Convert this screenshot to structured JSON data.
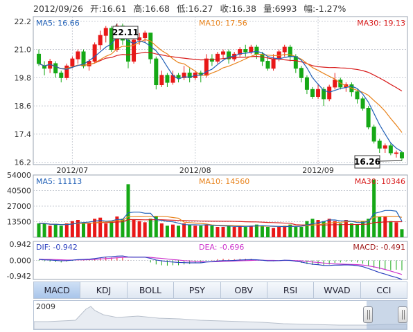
{
  "header": {
    "date": "2012/09/26",
    "open": "开:16.61",
    "high": "高:16.68",
    "low": "低:16.27",
    "close": "收:16.38",
    "volume": "量:6993",
    "change": "幅:-1.27%"
  },
  "colors": {
    "up": "#e81818",
    "down": "#16a816",
    "ma5": "#1f5fb6",
    "ma10": "#e8821a",
    "ma30": "#d81b1b",
    "grid": "#c8ccd4",
    "dif": "#2a3fbf",
    "dea": "#cc33cc"
  },
  "tabs": [
    "MACD",
    "KDJ",
    "BOLL",
    "PSY",
    "OBV",
    "RSI",
    "WVAD",
    "CCI"
  ],
  "active_tab": "MACD",
  "navigator_year": "2009",
  "chart_data": [
    {
      "type": "candlestick",
      "legend": {
        "ma5": "MA5: 16.66",
        "ma10": "MA10: 17.56",
        "ma30": "MA30: 19.13"
      },
      "ylim": [
        16.1,
        22.4
      ],
      "y_ticks": [
        "22.2",
        "21.0",
        "19.8",
        "18.6",
        "17.4",
        "16.2"
      ],
      "x_labels": [
        {
          "label": "2012/07",
          "index": 6
        },
        {
          "label": "2012/08",
          "index": 28
        },
        {
          "label": "2012/09",
          "index": 50
        }
      ],
      "max_label": "22.11",
      "min_label": "16.26",
      "candles": [
        [
          20.8,
          20.4,
          21.0,
          20.3
        ],
        [
          20.3,
          20.2,
          20.5,
          19.9
        ],
        [
          20.2,
          20.5,
          20.6,
          20.0
        ],
        [
          20.4,
          20.0,
          20.5,
          19.8
        ],
        [
          20.0,
          19.8,
          20.1,
          19.6
        ],
        [
          19.8,
          20.3,
          20.4,
          19.7
        ],
        [
          20.3,
          20.6,
          20.7,
          20.2
        ],
        [
          20.6,
          20.9,
          21.0,
          20.4
        ],
        [
          20.9,
          20.3,
          21.0,
          20.2
        ],
        [
          20.3,
          20.5,
          20.6,
          20.1
        ],
        [
          20.5,
          21.2,
          21.3,
          20.4
        ],
        [
          21.2,
          21.6,
          21.8,
          21.0
        ],
        [
          21.6,
          21.9,
          22.0,
          21.3
        ],
        [
          21.9,
          21.0,
          22.0,
          20.9
        ],
        [
          21.0,
          22.0,
          22.1,
          20.9
        ],
        [
          22.0,
          21.4,
          22.1,
          21.2
        ],
        [
          21.4,
          20.5,
          21.5,
          20.2
        ],
        [
          20.5,
          21.4,
          21.5,
          20.4
        ],
        [
          21.4,
          21.5,
          21.7,
          21.2
        ],
        [
          21.5,
          21.7,
          21.8,
          21.3
        ],
        [
          21.7,
          20.6,
          21.7,
          20.4
        ],
        [
          20.6,
          19.5,
          20.7,
          19.3
        ],
        [
          19.5,
          19.9,
          20.1,
          19.4
        ],
        [
          19.9,
          19.6,
          20.0,
          19.4
        ],
        [
          19.6,
          19.9,
          20.1,
          19.5
        ],
        [
          19.9,
          19.8,
          20.0,
          19.6
        ],
        [
          19.8,
          20.0,
          20.3,
          19.7
        ],
        [
          20.0,
          19.8,
          20.2,
          19.6
        ],
        [
          19.8,
          20.0,
          20.1,
          19.7
        ],
        [
          20.0,
          19.9,
          20.1,
          19.6
        ],
        [
          19.9,
          20.6,
          20.8,
          19.8
        ],
        [
          20.6,
          20.5,
          20.8,
          20.3
        ],
        [
          20.5,
          20.8,
          20.9,
          20.4
        ],
        [
          20.8,
          20.9,
          21.0,
          20.6
        ],
        [
          20.9,
          20.6,
          21.0,
          20.4
        ],
        [
          20.6,
          20.8,
          20.9,
          20.5
        ],
        [
          20.8,
          21.0,
          21.1,
          20.7
        ],
        [
          21.0,
          20.9,
          21.2,
          20.7
        ],
        [
          20.9,
          21.1,
          21.2,
          20.8
        ],
        [
          21.1,
          20.8,
          21.2,
          20.6
        ],
        [
          20.8,
          20.5,
          20.9,
          20.3
        ],
        [
          20.5,
          20.2,
          20.7,
          20.1
        ],
        [
          20.2,
          20.6,
          20.8,
          20.1
        ],
        [
          20.6,
          20.9,
          21.0,
          20.5
        ],
        [
          20.9,
          21.1,
          21.2,
          20.7
        ],
        [
          21.1,
          20.7,
          21.2,
          20.5
        ],
        [
          20.7,
          20.2,
          20.8,
          20.0
        ],
        [
          20.2,
          19.8,
          20.3,
          19.6
        ],
        [
          19.8,
          19.3,
          19.9,
          19.1
        ],
        [
          19.3,
          19.0,
          19.4,
          18.9
        ],
        [
          19.0,
          19.3,
          19.5,
          18.9
        ],
        [
          19.3,
          18.9,
          19.4,
          18.6
        ],
        [
          18.9,
          19.4,
          19.5,
          18.8
        ],
        [
          19.4,
          19.7,
          20.0,
          19.3
        ],
        [
          19.7,
          19.4,
          19.8,
          19.3
        ],
        [
          19.4,
          19.5,
          19.6,
          19.2
        ],
        [
          19.5,
          19.2,
          19.6,
          19.0
        ],
        [
          19.2,
          18.9,
          19.3,
          18.7
        ],
        [
          18.9,
          18.5,
          19.0,
          18.4
        ],
        [
          18.5,
          17.7,
          18.6,
          17.6
        ],
        [
          17.7,
          17.1,
          17.8,
          17.0
        ],
        [
          17.1,
          16.8,
          17.2,
          16.6
        ],
        [
          16.8,
          16.9,
          17.0,
          16.6
        ],
        [
          16.9,
          16.6,
          17.0,
          16.5
        ],
        [
          16.6,
          16.6,
          16.7,
          16.4
        ],
        [
          16.61,
          16.38,
          16.68,
          16.27
        ]
      ]
    },
    {
      "type": "bar",
      "legend": {
        "ma5": "MA5: 11113",
        "ma10": "MA10: 14560",
        "ma30": "MA30: 10346"
      },
      "ylim": [
        0,
        54000
      ],
      "y_ticks": [
        "54000",
        "40500",
        "27000",
        "13500"
      ],
      "values": [
        12000,
        12000,
        10000,
        11000,
        10000,
        12000,
        14000,
        15000,
        13000,
        12000,
        16000,
        17000,
        12000,
        14000,
        18000,
        16000,
        46000,
        15000,
        14000,
        13000,
        16000,
        18000,
        12000,
        10000,
        11000,
        10000,
        12000,
        11000,
        10000,
        10000,
        11000,
        10000,
        9000,
        9000,
        10000,
        9000,
        10000,
        9000,
        10000,
        11000,
        10000,
        9000,
        8000,
        9000,
        10000,
        11000,
        9000,
        9000,
        14000,
        16000,
        15000,
        14000,
        16000,
        14000,
        12000,
        15000,
        12000,
        11000,
        14000,
        16000,
        50000,
        18000,
        18000,
        14000,
        13000,
        7000
      ]
    },
    {
      "type": "line",
      "legend": {
        "dif": "DIF: -0.942",
        "dea": "DEA: -0.696",
        "macd": "MACD: -0.491"
      },
      "ylim": [
        -0.942,
        0.942
      ],
      "y_ticks": [
        "0.942",
        "0.000",
        "-0.942"
      ],
      "dif": [
        0.05,
        0.03,
        0.02,
        0.0,
        -0.02,
        -0.01,
        0.01,
        0.04,
        0.05,
        0.06,
        0.09,
        0.13,
        0.17,
        0.18,
        0.21,
        0.22,
        0.17,
        0.16,
        0.16,
        0.16,
        0.1,
        0.02,
        -0.02,
        -0.06,
        -0.08,
        -0.1,
        -0.11,
        -0.12,
        -0.12,
        -0.12,
        -0.08,
        -0.06,
        -0.03,
        -0.01,
        -0.01,
        0.0,
        0.02,
        0.03,
        0.04,
        0.03,
        0.01,
        -0.02,
        -0.02,
        -0.01,
        0.01,
        0.0,
        -0.04,
        -0.08,
        -0.14,
        -0.19,
        -0.21,
        -0.25,
        -0.25,
        -0.23,
        -0.23,
        -0.22,
        -0.23,
        -0.26,
        -0.31,
        -0.4,
        -0.5,
        -0.6,
        -0.68,
        -0.77,
        -0.84,
        -0.942
      ],
      "dea": [
        0.06,
        0.05,
        0.05,
        0.04,
        0.03,
        0.02,
        0.02,
        0.03,
        0.03,
        0.04,
        0.05,
        0.07,
        0.09,
        0.11,
        0.13,
        0.15,
        0.16,
        0.16,
        0.16,
        0.16,
        0.15,
        0.12,
        0.1,
        0.07,
        0.04,
        0.02,
        -0.01,
        -0.03,
        -0.05,
        -0.06,
        -0.07,
        -0.07,
        -0.06,
        -0.05,
        -0.04,
        -0.03,
        -0.02,
        -0.01,
        0.0,
        0.01,
        0.01,
        0.0,
        0.0,
        -0.01,
        0.0,
        0.0,
        -0.01,
        -0.02,
        -0.05,
        -0.08,
        -0.1,
        -0.13,
        -0.15,
        -0.17,
        -0.18,
        -0.19,
        -0.2,
        -0.21,
        -0.23,
        -0.27,
        -0.32,
        -0.38,
        -0.45,
        -0.53,
        -0.61,
        -0.696
      ]
    }
  ]
}
